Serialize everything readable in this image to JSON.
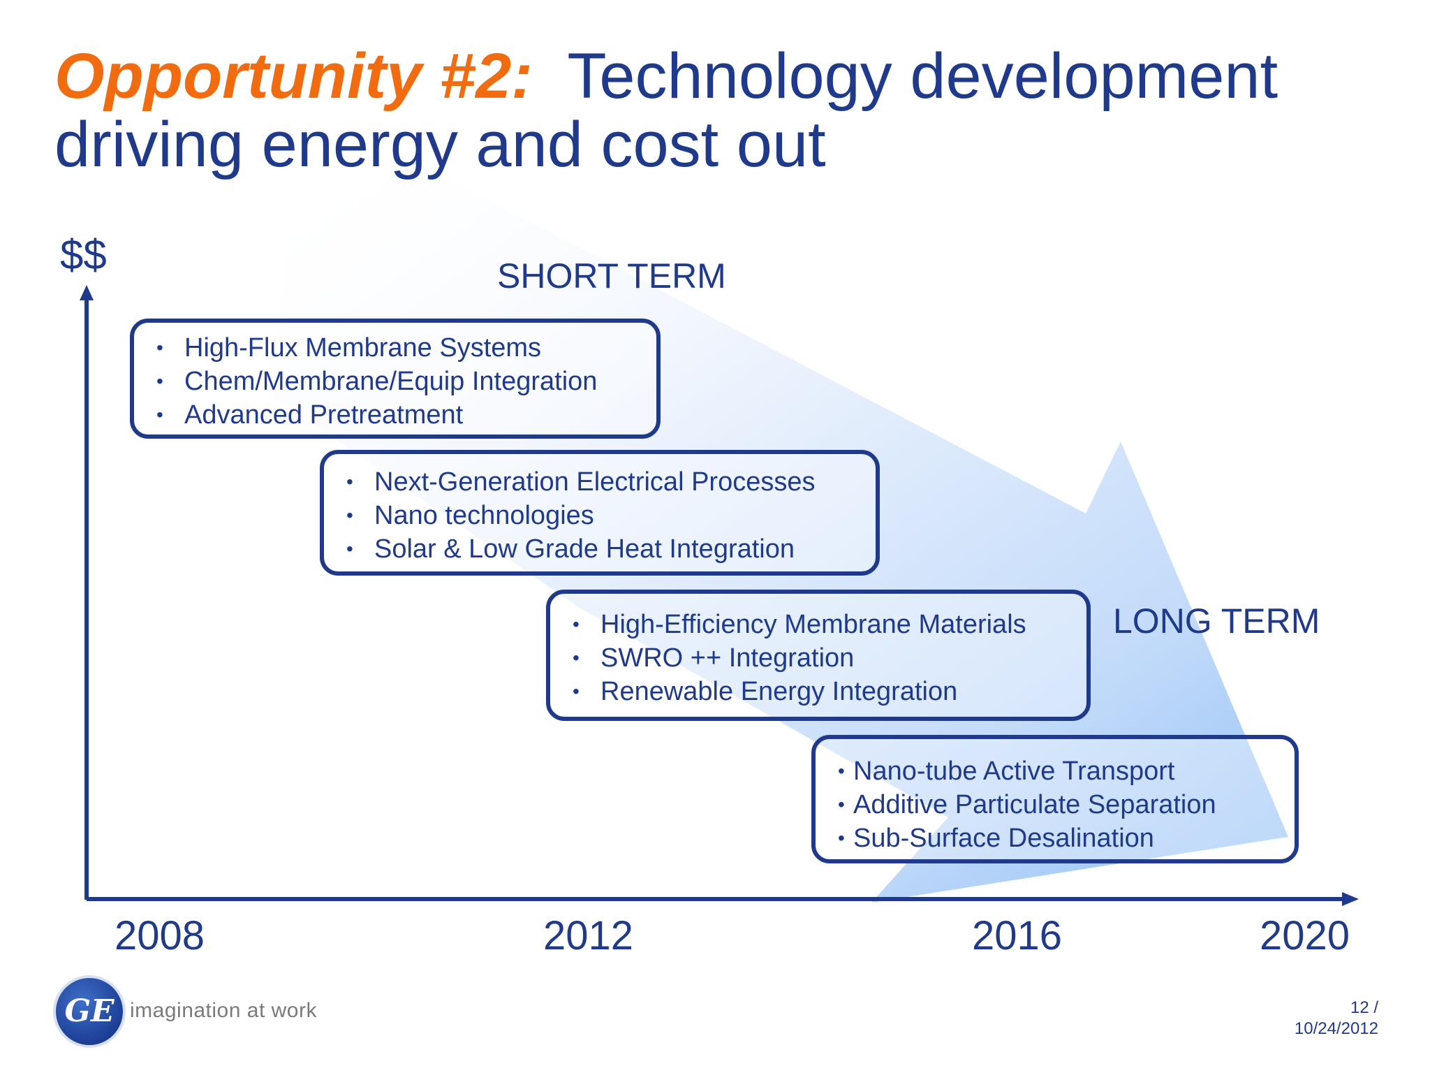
{
  "title": {
    "highlight": "Opportunity #2:",
    "line1": "Technology development",
    "line2": "driving energy and cost out"
  },
  "y_axis_label": "$$",
  "short_term_label": "SHORT TERM",
  "long_term_label": "LONG TERM",
  "years": [
    "2008",
    "2012",
    "2016",
    "2020"
  ],
  "boxes": [
    {
      "items": [
        "High-Flux Membrane Systems",
        "Chem/Membrane/Equip Integration",
        "Advanced Pretreatment"
      ]
    },
    {
      "items": [
        "Next-Generation Electrical Processes",
        "Nano technologies",
        "Solar & Low Grade Heat Integration"
      ]
    },
    {
      "items": [
        "High-Efficiency Membrane Materials",
        "SWRO ++ Integration",
        "Renewable Energy Integration"
      ]
    },
    {
      "items": [
        "Nano-tube Active Transport",
        "Additive Particulate Separation",
        "Sub-Surface Desalination"
      ]
    }
  ],
  "bullet": "•",
  "logo": {
    "monogram": "GE",
    "tagline": "imagination at work"
  },
  "footer": {
    "page": "12 /",
    "date": "10/24/2012"
  },
  "colors": {
    "title_blue": "#1f3a8c",
    "highlight_orange": "#f26b0f",
    "arrow_light": "#e6f0fd",
    "arrow_dark": "#9fc6f6"
  }
}
